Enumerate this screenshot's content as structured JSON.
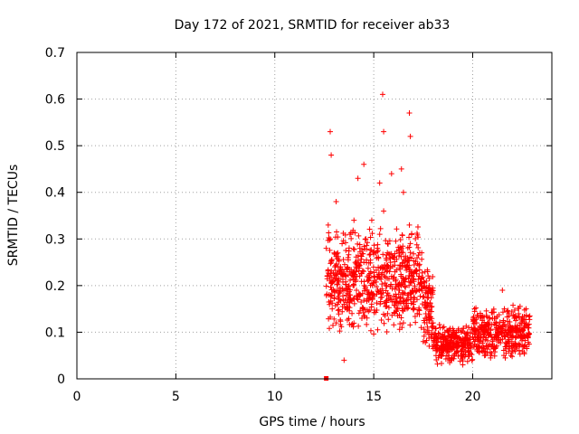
{
  "chart_data": {
    "type": "scatter",
    "title": "Day 172 of 2021, SRMTID for receiver ab33",
    "xlabel": "GPS time / hours",
    "ylabel": "SRMTID / TECUs",
    "xlim": [
      0,
      24
    ],
    "ylim": [
      0,
      0.7
    ],
    "x_ticks": [
      0,
      5,
      10,
      15,
      20
    ],
    "x_tick_labels": [
      "0",
      "5",
      "10",
      "15",
      "20"
    ],
    "y_ticks": [
      0,
      0.1,
      0.2,
      0.3,
      0.4,
      0.5,
      0.6,
      0.7
    ],
    "y_tick_labels": [
      "0",
      "0.1",
      "0.2",
      "0.3",
      "0.4",
      "0.5",
      "0.6",
      "0.7"
    ],
    "grid": true,
    "legend": "none",
    "marker": "+",
    "color": "#ff0000",
    "series": [
      {
        "name": "SRMTID",
        "x": [
          12.6,
          12.65,
          12.7,
          12.75,
          12.8,
          12.85,
          12.9,
          12.95,
          13.0,
          13.1,
          13.2,
          13.3,
          13.4,
          13.5,
          13.6,
          13.7,
          13.8,
          13.9,
          14.0,
          14.1,
          14.2,
          14.3,
          14.4,
          14.5,
          14.6,
          14.7,
          14.8,
          14.9,
          15.0,
          15.1,
          15.2,
          15.3,
          15.4,
          15.5,
          15.6,
          15.7,
          15.8,
          15.9,
          16.0,
          16.1,
          16.2,
          16.3,
          16.4,
          16.5,
          16.6,
          16.7,
          16.8,
          16.9,
          17.0,
          17.1,
          17.2,
          17.3,
          17.4,
          17.5,
          17.6,
          17.7,
          17.8,
          17.9,
          18.0,
          18.2,
          18.4,
          18.6,
          18.8,
          19.0,
          19.2,
          19.4,
          19.6,
          19.8,
          20.0,
          20.2,
          20.4,
          20.6,
          20.8,
          21.0,
          21.2,
          21.4,
          21.6,
          21.8,
          22.0,
          22.2,
          22.4,
          22.6,
          22.8,
          12.8,
          12.85,
          15.45,
          15.5,
          16.8,
          16.85,
          14.5,
          14.2,
          15.3,
          13.1,
          14.0,
          16.5,
          17.8,
          21.5,
          22.7,
          18.9,
          19.5,
          20.6,
          13.5,
          15.9,
          16.4
        ],
        "y": [
          0.28,
          0.22,
          0.33,
          0.18,
          0.3,
          0.25,
          0.15,
          0.21,
          0.27,
          0.12,
          0.24,
          0.19,
          0.29,
          0.16,
          0.22,
          0.26,
          0.31,
          0.14,
          0.2,
          0.23,
          0.17,
          0.28,
          0.13,
          0.25,
          0.3,
          0.21,
          0.18,
          0.34,
          0.22,
          0.27,
          0.19,
          0.31,
          0.24,
          0.36,
          0.2,
          0.29,
          0.23,
          0.17,
          0.26,
          0.21,
          0.15,
          0.19,
          0.28,
          0.12,
          0.24,
          0.18,
          0.33,
          0.21,
          0.16,
          0.23,
          0.14,
          0.19,
          0.11,
          0.08,
          0.13,
          0.1,
          0.07,
          0.09,
          0.12,
          0.06,
          0.08,
          0.1,
          0.05,
          0.07,
          0.09,
          0.06,
          0.08,
          0.11,
          0.09,
          0.12,
          0.08,
          0.1,
          0.07,
          0.13,
          0.09,
          0.11,
          0.15,
          0.08,
          0.06,
          0.1,
          0.12,
          0.07,
          0.09,
          0.53,
          0.48,
          0.61,
          0.53,
          0.57,
          0.52,
          0.46,
          0.43,
          0.42,
          0.38,
          0.34,
          0.4,
          0.2,
          0.19,
          0.15,
          0.04,
          0.03,
          0.05,
          0.04,
          0.44,
          0.45
        ],
        "extra_count": 1400
      }
    ]
  }
}
